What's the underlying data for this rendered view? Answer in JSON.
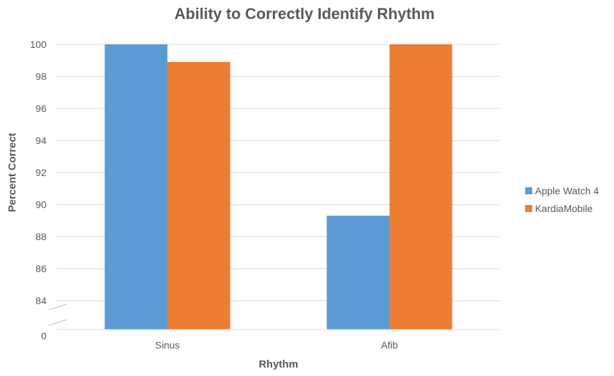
{
  "chart_data": {
    "type": "bar",
    "title": "Ability to Correctly Identify Rhythm",
    "xlabel": "Rhythm",
    "ylabel": "Percent Correct",
    "categories": [
      "Sinus",
      "Afib"
    ],
    "series": [
      {
        "name": "Apple Watch 4",
        "color": "#5b9bd5",
        "values": [
          100,
          89.3
        ]
      },
      {
        "name": "KardiaMobile",
        "color": "#ed7d31",
        "values": [
          98.9,
          100
        ]
      }
    ],
    "ylim": [
      84,
      100
    ],
    "yticks": [
      "100",
      "98",
      "96",
      "94",
      "92",
      "90",
      "88",
      "86",
      "84",
      "0"
    ],
    "axis_break": {
      "below": 84,
      "baseline_label": "0"
    },
    "grid": true,
    "legend_position": "right"
  }
}
